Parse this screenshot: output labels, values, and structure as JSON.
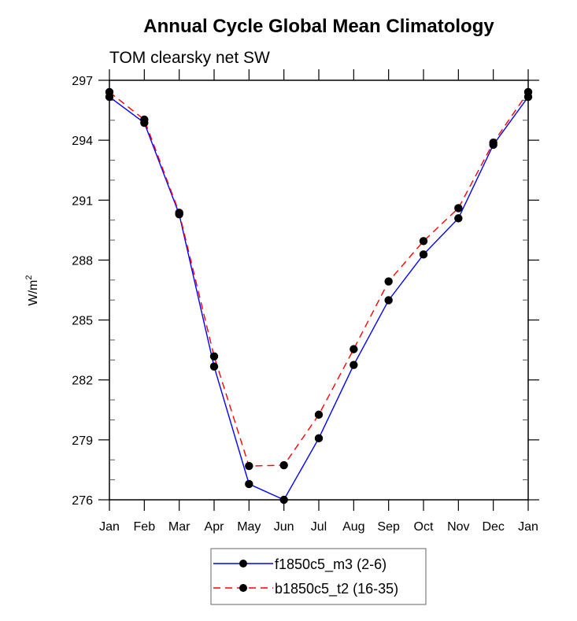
{
  "chart_data": {
    "type": "line",
    "title": "Annual Cycle Global Mean Climatology",
    "subtitle": "TOM clearsky net SW",
    "xlabel": "",
    "ylabel": "W/m",
    "ylabel_superscript": "2",
    "categories": [
      "Jan",
      "Feb",
      "Mar",
      "Apr",
      "May",
      "Jun",
      "Jul",
      "Aug",
      "Sep",
      "Oct",
      "Nov",
      "Dec",
      "Jan"
    ],
    "ylim": [
      276,
      297
    ],
    "yticks": [
      276,
      279,
      282,
      285,
      288,
      291,
      294,
      297
    ],
    "yticks_minor_step": 1,
    "grid": false,
    "legend_position": "bottom-center",
    "series": [
      {
        "name": "f1850c5_m3 (2-6)",
        "color": "#0000ff",
        "line_style": "solid",
        "marker": "filled-circle",
        "values": [
          296.17,
          294.87,
          290.29,
          282.67,
          276.79,
          276.0,
          279.08,
          282.75,
          285.99,
          288.28,
          290.09,
          293.77,
          296.17
        ]
      },
      {
        "name": "b1850c5_t2 (16-35)",
        "color": "#ff0000",
        "line_style": "dashed",
        "marker": "filled-circle",
        "values": [
          296.41,
          295.03,
          290.37,
          283.18,
          277.69,
          277.73,
          280.26,
          283.54,
          286.93,
          288.95,
          290.6,
          293.88,
          296.41
        ]
      }
    ]
  }
}
